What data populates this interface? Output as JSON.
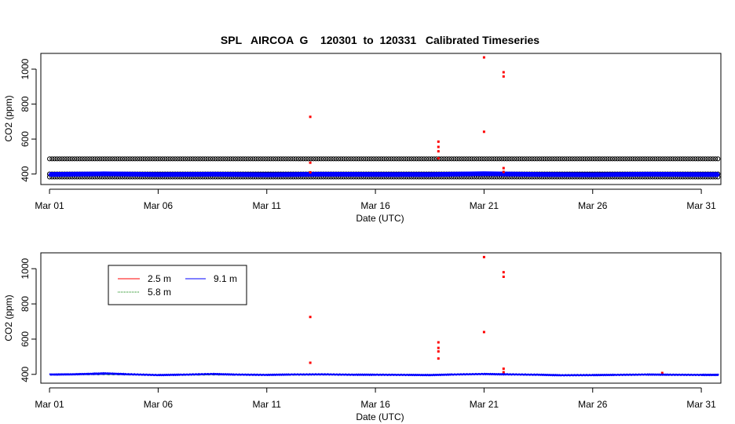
{
  "figure_title": "SPL   AIRCOA  G    120301  to  120331   Calibrated Timeseries",
  "chart_data": [
    {
      "type": "scatter",
      "title": "SPL   AIRCOA  G    120301  to  120331   Calibrated Timeseries",
      "xlabel": "Date (UTC)",
      "ylabel": "CO2 (ppm)",
      "x_unit": "day of March 2012",
      "xlim": [
        0.6,
        31.9
      ],
      "ylim": [
        340,
        1090
      ],
      "xticks": [
        1,
        6,
        11,
        16,
        21,
        26,
        31
      ],
      "xtick_labels": [
        "Mar 01",
        "Mar 06",
        "Mar 11",
        "Mar 16",
        "Mar 21",
        "Mar 26",
        "Mar 31"
      ],
      "yticks": [
        400,
        600,
        800,
        1000
      ],
      "ytick_labels": [
        "400",
        "600",
        "800",
        "1000"
      ],
      "grid": false,
      "legend": "none",
      "bands": [
        {
          "name": "",
          "color": "#000000",
          "style": "open-circles",
          "values": [
            487,
            400,
            383
          ]
        }
      ],
      "series": [
        {
          "name": "",
          "color": "#0000ff",
          "x": [
            1,
            3.5,
            6,
            8.5,
            11,
            13.5,
            16,
            18.5,
            21,
            23.5,
            26,
            28.5,
            31,
            31.8
          ],
          "y": [
            398,
            401,
            397,
            399,
            396,
            399,
            398,
            397,
            402,
            398,
            396,
            399,
            397,
            397
          ]
        },
        {
          "name": "",
          "color": "#ff0000",
          "x": [
            13.0,
            13.0,
            13.0,
            18.9,
            18.9,
            18.9,
            18.9,
            21.0,
            21.0,
            21.9,
            21.9,
            21.9,
            21.9
          ],
          "y": [
            727,
            465,
            410,
            585,
            555,
            530,
            490,
            1067,
            642,
            982,
            958,
            434,
            412
          ]
        }
      ]
    },
    {
      "type": "line",
      "title": "",
      "xlabel": "Date (UTC)",
      "ylabel": "CO2 (ppm)",
      "x_unit": "day of March 2012",
      "xlim": [
        0.6,
        31.9
      ],
      "ylim": [
        350,
        1090
      ],
      "xticks": [
        1,
        6,
        11,
        16,
        21,
        26,
        31
      ],
      "xtick_labels": [
        "Mar 01",
        "Mar 06",
        "Mar 11",
        "Mar 16",
        "Mar 21",
        "Mar 26",
        "Mar 31"
      ],
      "yticks": [
        400,
        600,
        800,
        1000
      ],
      "ytick_labels": [
        "400",
        "600",
        "800",
        "1000"
      ],
      "grid": false,
      "legend": "top-left",
      "series": [
        {
          "name": "2.5 m",
          "color": "#ff0000",
          "x": [
            13.0,
            13.0,
            18.9,
            18.9,
            18.9,
            18.9,
            21.0,
            21.0,
            21.9,
            21.9,
            21.9,
            21.9,
            29.2
          ],
          "y": [
            726,
            466,
            582,
            550,
            530,
            490,
            1066,
            640,
            980,
            954,
            432,
            412,
            408
          ]
        },
        {
          "name": "5.8 m",
          "color": "#008000",
          "x": [
            1,
            3.5,
            6,
            8.5,
            11,
            13.5,
            16,
            18.5,
            21,
            23.5,
            26,
            28.5,
            31,
            31.8
          ],
          "y": [
            398,
            400,
            396,
            398,
            397,
            398,
            397,
            397,
            401,
            397,
            395,
            398,
            397,
            397
          ]
        },
        {
          "name": "9.1 m",
          "color": "#0000ff",
          "x": [
            1,
            2,
            3,
            3.6,
            4.5,
            6,
            7,
            8.5,
            9.5,
            11,
            12,
            13.5,
            15,
            16,
            17.5,
            18.5,
            19.5,
            21,
            22,
            23.5,
            24.5,
            26,
            27,
            28.5,
            29.5,
            31,
            31.8
          ],
          "y": [
            399,
            400,
            403,
            405,
            401,
            396,
            398,
            402,
            399,
            397,
            399,
            400,
            398,
            398,
            397,
            396,
            399,
            402,
            400,
            398,
            395,
            396,
            397,
            399,
            398,
            397,
            397
          ]
        }
      ]
    }
  ]
}
